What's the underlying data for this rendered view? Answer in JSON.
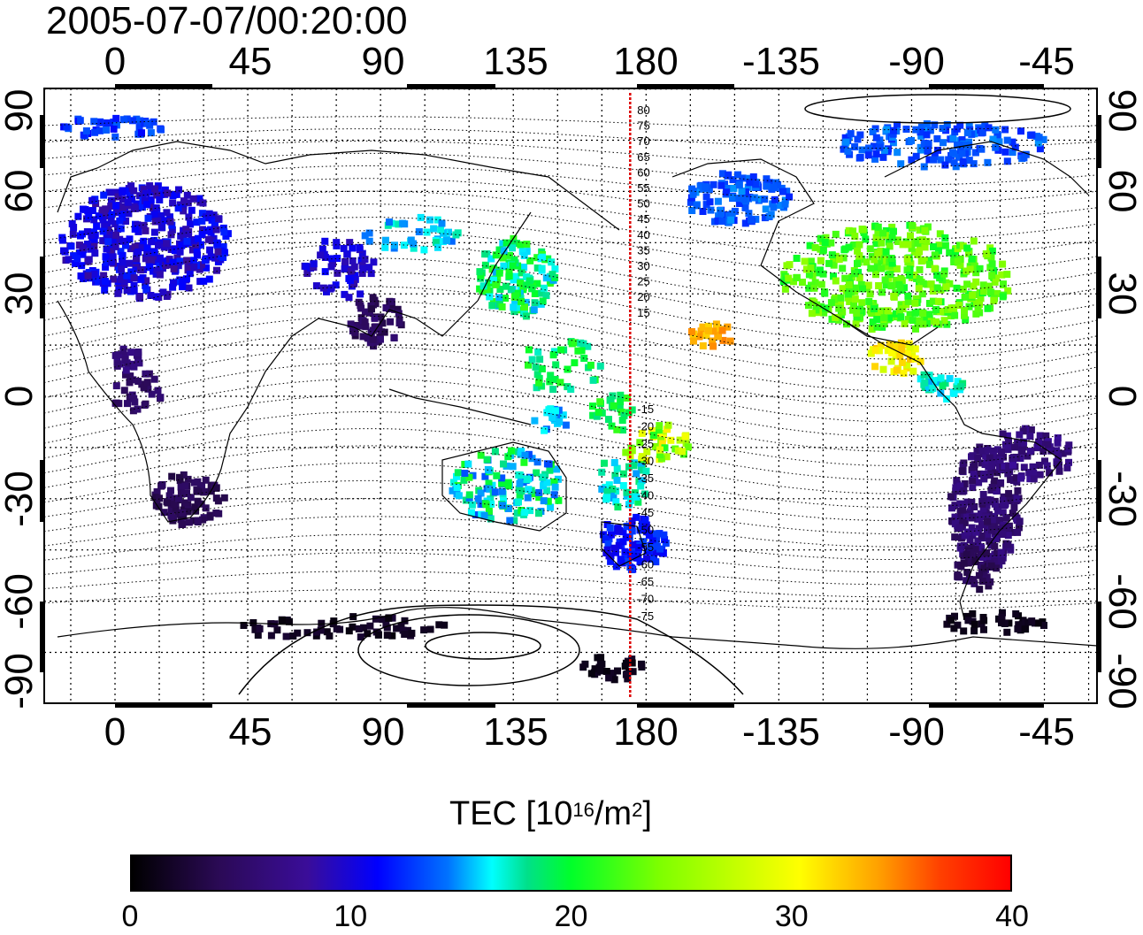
{
  "title": "2005-07-07/00:20:00",
  "map": {
    "lon_labels": [
      "0",
      "45",
      "90",
      "135",
      "180",
      "-135",
      "-90",
      "-45"
    ],
    "lat_labels": [
      "90",
      "60",
      "30",
      "0",
      "-30",
      "-60",
      "-90"
    ],
    "meridian_line": {
      "longitude": 180,
      "color": "#dd0000"
    },
    "contour_labels_north": [
      "80",
      "75",
      "70",
      "65",
      "60",
      "55",
      "50",
      "45",
      "40",
      "35",
      "30",
      "25",
      "20",
      "15"
    ],
    "contour_labels_south": [
      "-15",
      "-20",
      "-25",
      "-30",
      "-35",
      "-40",
      "-45",
      "-50",
      "-55",
      "-60",
      "-65",
      "-70",
      "-75"
    ]
  },
  "colorbar": {
    "label": "TEC  [10",
    "label_sup": "16",
    "label_mid": "/m",
    "label_sup2": "2",
    "label_end": "]",
    "ticks": [
      "0",
      "10",
      "20",
      "30",
      "40"
    ],
    "range": [
      0,
      40
    ]
  }
}
